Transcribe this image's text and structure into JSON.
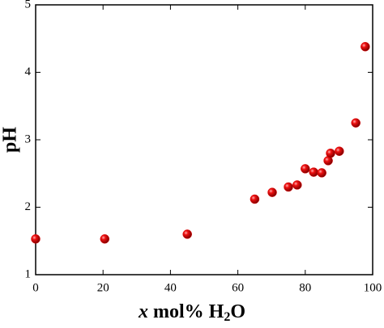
{
  "chart_data": {
    "type": "scatter",
    "xlabel": {
      "var": "x",
      "text": " mol% H",
      "sub": "2",
      "tail": "O"
    },
    "ylabel": "pH",
    "series": [
      {
        "color": "#e00000",
        "x": [
          0,
          20.5,
          45,
          65,
          70.2,
          75,
          77.6,
          80,
          82.5,
          84.9,
          86.8,
          87.5,
          90.1,
          95,
          97.8
        ],
        "values": [
          1.53,
          1.53,
          1.6,
          2.12,
          2.22,
          2.3,
          2.33,
          2.57,
          2.52,
          2.51,
          2.69,
          2.8,
          2.83,
          3.25,
          4.38
        ]
      }
    ],
    "xlim": [
      0,
      100
    ],
    "xticks": [
      0,
      20,
      40,
      60,
      80,
      100
    ],
    "ylim": [
      1,
      5
    ],
    "yticks": [
      1,
      2,
      3,
      4,
      5
    ]
  }
}
